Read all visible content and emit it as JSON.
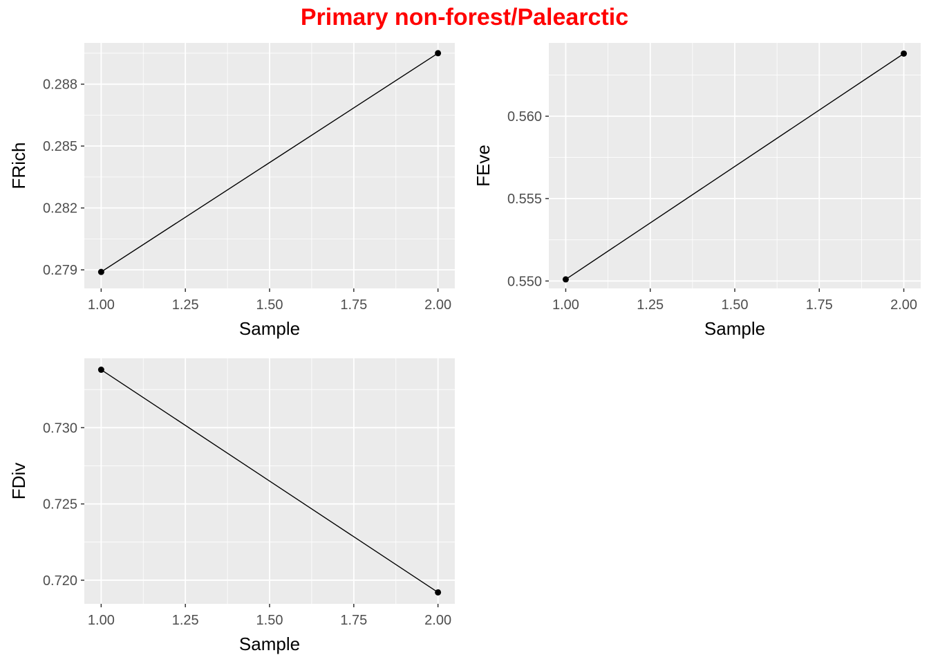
{
  "title": "Primary non-forest/Palearctic",
  "colors": {
    "title": "#ff0000",
    "panel_bg": "#ebebeb",
    "grid": "#ffffff",
    "line": "#000000",
    "tick_label": "#4d4d4d"
  },
  "chart_data": [
    {
      "type": "line",
      "xlabel": "Sample",
      "ylabel": "FRich",
      "x": [
        1.0,
        2.0
      ],
      "y": [
        0.2789,
        0.2895
      ],
      "xlim": [
        0.95,
        2.05
      ],
      "ylim": [
        0.2781,
        0.29
      ],
      "xticks": [
        1.0,
        1.25,
        1.5,
        1.75,
        2.0
      ],
      "xtick_labels": [
        "1.00",
        "1.25",
        "1.50",
        "1.75",
        "2.00"
      ],
      "yticks": [
        0.279,
        0.282,
        0.285,
        0.288
      ],
      "ytick_labels": [
        "0.279",
        "0.282",
        "0.285",
        "0.288"
      ],
      "grid": true,
      "markers": true
    },
    {
      "type": "line",
      "xlabel": "Sample",
      "ylabel": "FEve",
      "x": [
        1.0,
        2.0
      ],
      "y": [
        0.5501,
        0.5638
      ],
      "xlim": [
        0.95,
        2.05
      ],
      "ylim": [
        0.54955,
        0.56445
      ],
      "xticks": [
        1.0,
        1.25,
        1.5,
        1.75,
        2.0
      ],
      "xtick_labels": [
        "1.00",
        "1.25",
        "1.50",
        "1.75",
        "2.00"
      ],
      "yticks": [
        0.55,
        0.555,
        0.56
      ],
      "ytick_labels": [
        "0.550",
        "0.555",
        "0.560"
      ],
      "grid": true,
      "markers": true
    },
    {
      "type": "line",
      "xlabel": "Sample",
      "ylabel": "FDiv",
      "x": [
        1.0,
        2.0
      ],
      "y": [
        0.7338,
        0.7192
      ],
      "xlim": [
        0.95,
        2.05
      ],
      "ylim": [
        0.71845,
        0.73455
      ],
      "xticks": [
        1.0,
        1.25,
        1.5,
        1.75,
        2.0
      ],
      "xtick_labels": [
        "1.00",
        "1.25",
        "1.50",
        "1.75",
        "2.00"
      ],
      "yticks": [
        0.72,
        0.725,
        0.73
      ],
      "ytick_labels": [
        "0.720",
        "0.725",
        "0.730"
      ],
      "grid": true,
      "markers": true
    }
  ]
}
